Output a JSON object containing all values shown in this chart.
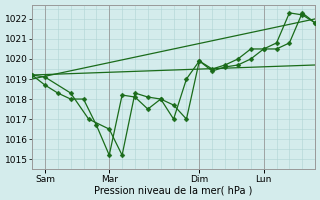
{
  "xlabel": "Pression niveau de la mer( hPa )",
  "ylim": [
    1014.5,
    1022.7
  ],
  "yticks": [
    1015,
    1016,
    1017,
    1018,
    1019,
    1020,
    1021,
    1022
  ],
  "bg_color": "#d4ecec",
  "grid_color": "#b0d4d4",
  "line_color": "#1a6b1a",
  "xtick_labels": [
    "Sam",
    "Mar",
    "Dim",
    "Lun"
  ],
  "xtick_positions": [
    0.5,
    3.0,
    6.5,
    9.0
  ],
  "vline_x": [
    0.5,
    3.0,
    6.5,
    9.0
  ],
  "xlim": [
    0,
    11.0
  ],
  "series1_x": [
    0.0,
    0.5,
    1.5,
    2.2,
    3.0,
    3.5,
    4.0,
    4.5,
    5.0,
    5.5,
    6.0,
    6.5,
    7.0,
    7.5,
    8.0,
    8.5,
    9.0,
    9.5,
    10.0,
    10.5,
    11.0
  ],
  "series1_y": [
    1019.2,
    1019.1,
    1018.3,
    1017.0,
    1016.5,
    1015.2,
    1018.3,
    1018.1,
    1018.0,
    1017.7,
    1017.0,
    1019.9,
    1019.4,
    1019.6,
    1019.7,
    1020.0,
    1020.5,
    1020.5,
    1020.8,
    1022.3,
    1021.8
  ],
  "series2_x": [
    0.0,
    0.5,
    1.0,
    1.5,
    2.0,
    2.5,
    3.0,
    3.5,
    4.0,
    4.5,
    5.0,
    5.5,
    6.0,
    6.5,
    7.0,
    7.5,
    8.0,
    8.5,
    9.0,
    9.5,
    10.0,
    10.5,
    11.0
  ],
  "series2_y": [
    1019.2,
    1018.7,
    1018.3,
    1018.0,
    1018.0,
    1016.7,
    1015.2,
    1018.2,
    1018.1,
    1017.5,
    1018.0,
    1017.0,
    1019.0,
    1019.9,
    1019.5,
    1019.7,
    1020.0,
    1020.5,
    1020.5,
    1020.8,
    1022.3,
    1022.2,
    1021.8
  ],
  "trend1_x": [
    0.0,
    11.0
  ],
  "trend1_y": [
    1019.2,
    1019.7
  ],
  "trend2_x": [
    0.0,
    11.0
  ],
  "trend2_y": [
    1019.0,
    1022.0
  ],
  "marker_size": 2.5,
  "linewidth": 0.9,
  "marker": "D"
}
